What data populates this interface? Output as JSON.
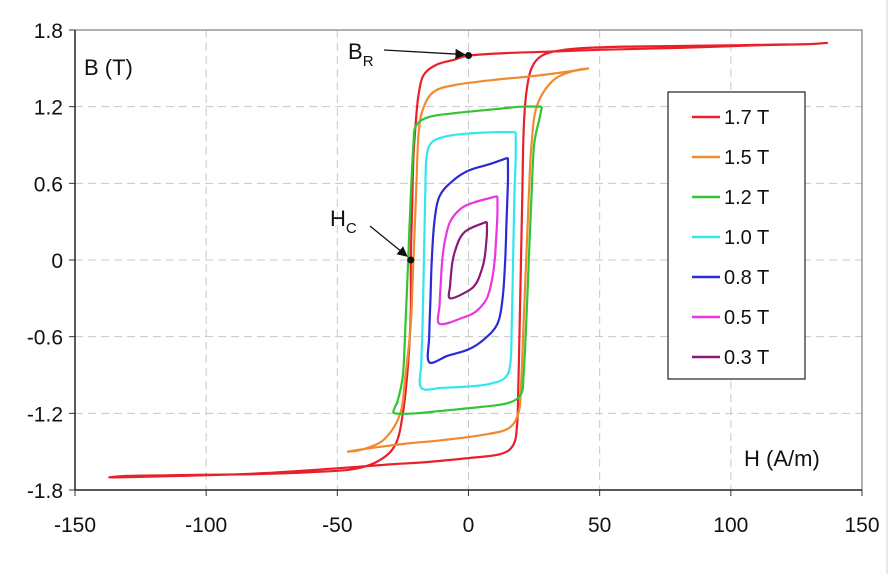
{
  "chart_data": {
    "type": "line",
    "title": "",
    "xlabel": "H (A/m)",
    "ylabel": "B (T)",
    "xlim": [
      -150,
      150
    ],
    "ylim": [
      -1.8,
      1.8
    ],
    "xticks": [
      -150,
      -100,
      -50,
      0,
      50,
      100,
      150
    ],
    "yticks": [
      -1.8,
      -1.2,
      -0.6,
      0,
      0.6,
      1.2,
      1.8
    ],
    "xtick_labels": [
      "-150",
      "-100",
      "-50",
      "0",
      "50",
      "100",
      "150"
    ],
    "ytick_labels": [
      "-1.8",
      "-1.2",
      "-0.6",
      "0",
      "0.6",
      "1.2",
      "1.8"
    ],
    "grid": true,
    "legend_position": "right",
    "annotations": [
      {
        "label": "B",
        "subscript": "R",
        "x": 0,
        "y": 1.6
      },
      {
        "label": "H",
        "subscript": "C",
        "x": -22,
        "y": 0
      }
    ],
    "series": [
      {
        "name": "1.7 T",
        "color": "#e8202a",
        "values": [
          [
            137,
            1.7
          ],
          [
            130,
            1.69
          ],
          [
            115,
            1.685
          ],
          [
            100,
            1.68
          ],
          [
            80,
            1.675
          ],
          [
            60,
            1.67
          ],
          [
            45,
            1.66
          ],
          [
            35,
            1.64
          ],
          [
            28,
            1.6
          ],
          [
            24,
            1.5
          ],
          [
            22,
            1.3
          ],
          [
            21,
            1.0
          ],
          [
            20.5,
            0.5
          ],
          [
            20,
            0
          ],
          [
            19.5,
            -0.5
          ],
          [
            19,
            -1.0
          ],
          [
            18.5,
            -1.3
          ],
          [
            17,
            -1.45
          ],
          [
            12,
            -1.52
          ],
          [
            0,
            -1.55
          ],
          [
            -15,
            -1.58
          ],
          [
            -30,
            -1.6
          ],
          [
            -50,
            -1.63
          ],
          [
            -80,
            -1.67
          ],
          [
            -110,
            -1.69
          ],
          [
            -130,
            -1.7
          ],
          [
            -137,
            -1.7
          ],
          [
            -130,
            -1.69
          ],
          [
            -115,
            -1.685
          ],
          [
            -100,
            -1.68
          ],
          [
            -80,
            -1.675
          ],
          [
            -60,
            -1.66
          ],
          [
            -45,
            -1.64
          ],
          [
            -35,
            -1.58
          ],
          [
            -28,
            -1.45
          ],
          [
            -25,
            -1.2
          ],
          [
            -23,
            -0.8
          ],
          [
            -22,
            -0.4
          ],
          [
            -22,
            0
          ],
          [
            -21.5,
            0.4
          ],
          [
            -21,
            0.8
          ],
          [
            -20,
            1.1
          ],
          [
            -19,
            1.3
          ],
          [
            -17,
            1.45
          ],
          [
            -12,
            1.53
          ],
          [
            -5,
            1.57
          ],
          [
            0,
            1.6
          ],
          [
            15,
            1.62
          ],
          [
            30,
            1.63
          ],
          [
            50,
            1.645
          ],
          [
            80,
            1.66
          ],
          [
            110,
            1.68
          ],
          [
            130,
            1.69
          ],
          [
            137,
            1.7
          ]
        ]
      },
      {
        "name": "1.5 T",
        "color": "#f08a30",
        "values": [
          [
            46,
            1.5
          ],
          [
            40,
            1.48
          ],
          [
            32,
            1.4
          ],
          [
            26,
            1.2
          ],
          [
            24,
            0.9
          ],
          [
            23,
            0.5
          ],
          [
            22,
            0
          ],
          [
            21,
            -0.5
          ],
          [
            20,
            -1.0
          ],
          [
            19,
            -1.2
          ],
          [
            15,
            -1.32
          ],
          [
            5,
            -1.37
          ],
          [
            -10,
            -1.41
          ],
          [
            -25,
            -1.44
          ],
          [
            -40,
            -1.48
          ],
          [
            -46,
            -1.5
          ],
          [
            -40,
            -1.48
          ],
          [
            -32,
            -1.4
          ],
          [
            -26,
            -1.2
          ],
          [
            -24,
            -0.9
          ],
          [
            -22,
            -0.5
          ],
          [
            -21,
            0
          ],
          [
            -20,
            0.5
          ],
          [
            -19,
            1.0
          ],
          [
            -17,
            1.2
          ],
          [
            -13,
            1.32
          ],
          [
            -5,
            1.37
          ],
          [
            10,
            1.41
          ],
          [
            25,
            1.44
          ],
          [
            40,
            1.48
          ],
          [
            46,
            1.5
          ]
        ]
      },
      {
        "name": "1.2 T",
        "color": "#33c433",
        "values": [
          [
            28,
            1.2
          ],
          [
            27,
            1.1
          ],
          [
            25,
            0.9
          ],
          [
            24,
            0.5
          ],
          [
            23,
            0
          ],
          [
            22,
            -0.5
          ],
          [
            21,
            -0.9
          ],
          [
            20,
            -1.05
          ],
          [
            15,
            -1.12
          ],
          [
            5,
            -1.15
          ],
          [
            -10,
            -1.18
          ],
          [
            -20,
            -1.2
          ],
          [
            -28,
            -1.2
          ],
          [
            -28,
            -1.15
          ],
          [
            -27,
            -1.1
          ],
          [
            -25,
            -0.9
          ],
          [
            -24,
            -0.5
          ],
          [
            -23,
            0
          ],
          [
            -22,
            0.5
          ],
          [
            -21,
            0.9
          ],
          [
            -20,
            1.05
          ],
          [
            -15,
            1.12
          ],
          [
            -5,
            1.15
          ],
          [
            10,
            1.18
          ],
          [
            20,
            1.2
          ],
          [
            28,
            1.2
          ]
        ]
      },
      {
        "name": "1.0 T",
        "color": "#33e6ee",
        "values": [
          [
            18,
            1.0
          ],
          [
            18,
            0.8
          ],
          [
            17.5,
            0.5
          ],
          [
            17,
            0
          ],
          [
            16.5,
            -0.5
          ],
          [
            16,
            -0.8
          ],
          [
            14,
            -0.92
          ],
          [
            8,
            -0.97
          ],
          [
            0,
            -0.99
          ],
          [
            -10,
            -1.0
          ],
          [
            -18,
            -1.0
          ],
          [
            -18,
            -0.8
          ],
          [
            -17.5,
            -0.5
          ],
          [
            -17,
            0
          ],
          [
            -16.5,
            0.5
          ],
          [
            -16,
            0.8
          ],
          [
            -14,
            0.92
          ],
          [
            -8,
            0.97
          ],
          [
            0,
            0.99
          ],
          [
            10,
            1.0
          ],
          [
            18,
            1.0
          ]
        ]
      },
      {
        "name": "0.8 T",
        "color": "#2a2ad6",
        "values": [
          [
            15,
            0.8
          ],
          [
            15,
            0.6
          ],
          [
            14.5,
            0.3
          ],
          [
            14,
            0
          ],
          [
            13,
            -0.3
          ],
          [
            11,
            -0.5
          ],
          [
            6,
            -0.62
          ],
          [
            0,
            -0.7
          ],
          [
            -8,
            -0.75
          ],
          [
            -15,
            -0.8
          ],
          [
            -15,
            -0.6
          ],
          [
            -14.5,
            -0.3
          ],
          [
            -14,
            0
          ],
          [
            -13,
            0.3
          ],
          [
            -11,
            0.5
          ],
          [
            -6,
            0.62
          ],
          [
            0,
            0.7
          ],
          [
            8,
            0.75
          ],
          [
            15,
            0.8
          ]
        ]
      },
      {
        "name": "0.5 T",
        "color": "#e836e0",
        "values": [
          [
            11,
            0.5
          ],
          [
            11,
            0.35
          ],
          [
            10.5,
            0.15
          ],
          [
            10,
            0
          ],
          [
            9,
            -0.15
          ],
          [
            7,
            -0.3
          ],
          [
            3,
            -0.4
          ],
          [
            -2,
            -0.45
          ],
          [
            -11,
            -0.5
          ],
          [
            -11,
            -0.35
          ],
          [
            -10.5,
            -0.15
          ],
          [
            -10,
            0
          ],
          [
            -9,
            0.15
          ],
          [
            -7,
            0.3
          ],
          [
            -3,
            0.4
          ],
          [
            2,
            0.45
          ],
          [
            11,
            0.5
          ]
        ]
      },
      {
        "name": "0.3 T",
        "color": "#8a1a7a",
        "values": [
          [
            7,
            0.3
          ],
          [
            7,
            0.2
          ],
          [
            6.5,
            0.08
          ],
          [
            6,
            0
          ],
          [
            5,
            -0.08
          ],
          [
            3,
            -0.18
          ],
          [
            0,
            -0.24
          ],
          [
            -7,
            -0.3
          ],
          [
            -7,
            -0.2
          ],
          [
            -6.5,
            -0.08
          ],
          [
            -6,
            0
          ],
          [
            -5,
            0.08
          ],
          [
            -3,
            0.18
          ],
          [
            0,
            0.24
          ],
          [
            7,
            0.3
          ]
        ]
      }
    ]
  }
}
